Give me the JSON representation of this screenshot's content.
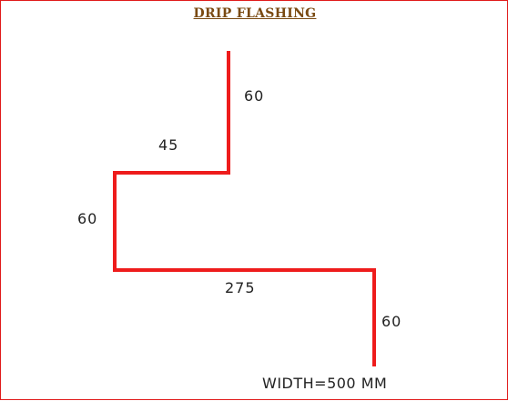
{
  "title": "DRIP  FLASHING",
  "colors": {
    "profile_line": "#ee1c1c",
    "border": "#e01b1b",
    "title": "#7a4a12"
  },
  "segments": {
    "top_vertical": "60",
    "upper_horizontal": "45",
    "middle_vertical": "60",
    "lower_horizontal": "275",
    "bottom_vertical": "60"
  },
  "total_width": "WIDTH=500 MM"
}
